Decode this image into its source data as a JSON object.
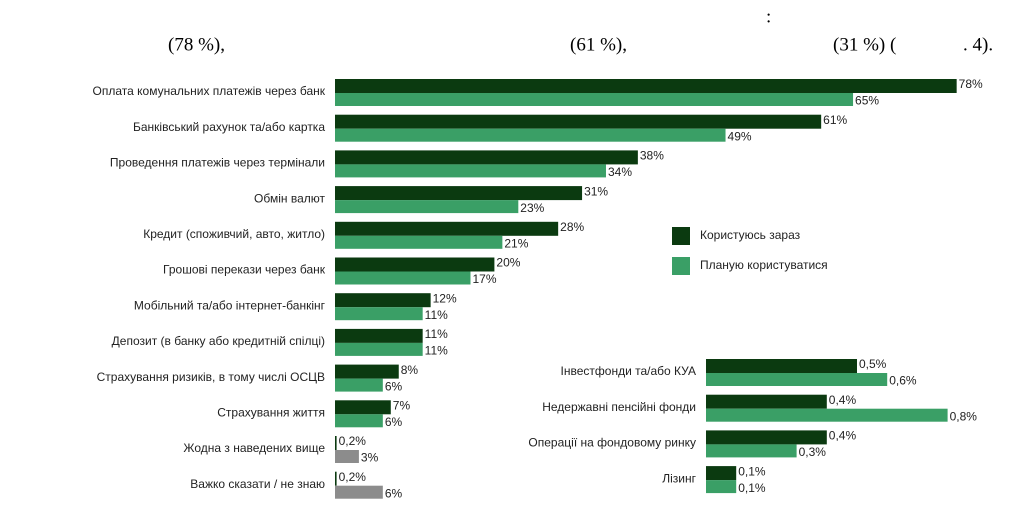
{
  "text_fragments": [
    ":",
    "(78 %),",
    "(61 %),",
    "(31 %) (",
    ". 4)."
  ],
  "chart_data": [
    {
      "type": "hbar",
      "categories": [
        "Оплата комунальних платежів через банк",
        "Банківський рахунок та/або картка",
        "Проведення платежів через термінали",
        "Обмін валют",
        "Кредит (споживчий, авто, житло)",
        "Грошові перекази через банк",
        "Мобільний та/або інтернет-банкінг",
        "Депозит (в банку або кредитній спілці)",
        "Страхування ризиків, в тому числі ОСЦВ",
        "Страхування життя",
        "Жодна з наведених вище",
        "Важко сказати / не знаю"
      ],
      "series": [
        {
          "name": "Користуюсь зараз",
          "color": "#0b3a10",
          "values": [
            78,
            61,
            38,
            31,
            28,
            20,
            12,
            11,
            8,
            7,
            0.2,
            0.2
          ],
          "value_labels": [
            "78%",
            "61%",
            "38%",
            "31%",
            "28%",
            "20%",
            "12%",
            "11%",
            "8%",
            "7%",
            "0,2%",
            "0,2%"
          ]
        },
        {
          "name": "Планую користуватися",
          "color": "#3a9f66",
          "colors": [
            "#3a9f66",
            "#3a9f66",
            "#3a9f66",
            "#3a9f66",
            "#3a9f66",
            "#3a9f66",
            "#3a9f66",
            "#3a9f66",
            "#3a9f66",
            "#3a9f66",
            "#8c8c8c",
            "#8c8c8c"
          ],
          "values": [
            65,
            49,
            34,
            23,
            21,
            17,
            11,
            11,
            6,
            6,
            3,
            6
          ],
          "value_labels": [
            "65%",
            "49%",
            "34%",
            "23%",
            "21%",
            "17%",
            "11%",
            "11%",
            "6%",
            "6%",
            "3%",
            "6%"
          ]
        }
      ],
      "legend": "right"
    },
    {
      "type": "hbar",
      "categories": [
        "Інвестфонди та/або КУА",
        "Недержавні пенсійні фонди",
        "Операції на фондовому ринку",
        "Лізинг"
      ],
      "series": [
        {
          "name": "Користуюсь зараз",
          "color": "#0b3a10",
          "values": [
            0.5,
            0.4,
            0.4,
            0.1
          ],
          "value_labels": [
            "0,5%",
            "0,4%",
            "0,4%",
            "0,1%"
          ]
        },
        {
          "name": "Планую користуватися",
          "color": "#3a9f66",
          "values": [
            0.6,
            0.8,
            0.3,
            0.1
          ],
          "value_labels": [
            "0,6%",
            "0,8%",
            "0,3%",
            "0,1%"
          ]
        }
      ]
    }
  ]
}
